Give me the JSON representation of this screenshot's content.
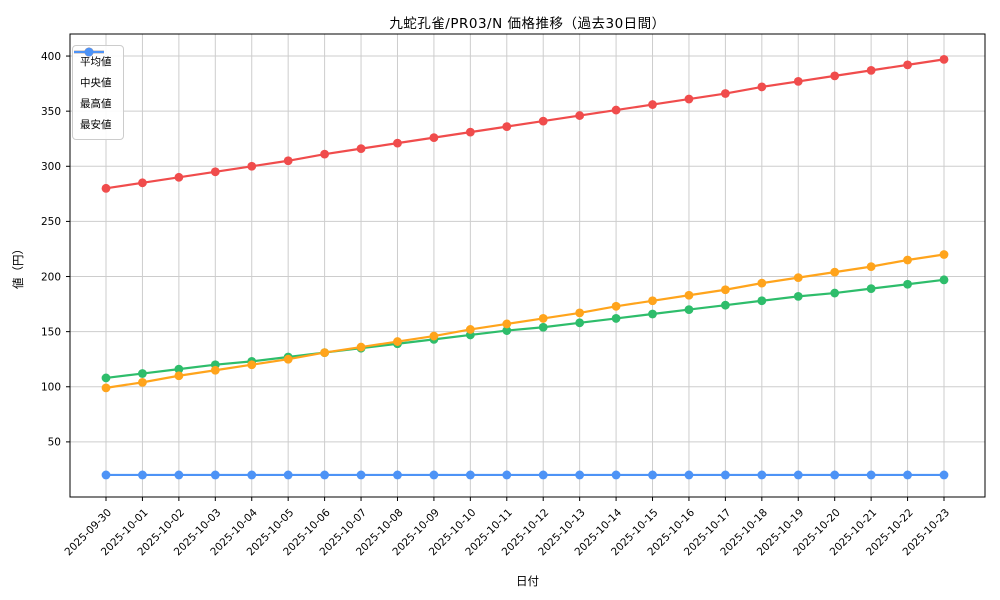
{
  "chart_data": {
    "type": "line",
    "title": "九蛇孔雀/PR03/N 価格推移（過去30日間）",
    "xlabel": "日付",
    "ylabel": "値（円）",
    "x": [
      "2025-09-30",
      "2025-10-01",
      "2025-10-02",
      "2025-10-03",
      "2025-10-04",
      "2025-10-05",
      "2025-10-06",
      "2025-10-07",
      "2025-10-08",
      "2025-10-09",
      "2025-10-10",
      "2025-10-11",
      "2025-10-12",
      "2025-10-13",
      "2025-10-14",
      "2025-10-15",
      "2025-10-16",
      "2025-10-17",
      "2025-10-18",
      "2025-10-19",
      "2025-10-20",
      "2025-10-21",
      "2025-10-22",
      "2025-10-23"
    ],
    "series": [
      {
        "id": "average",
        "name": "平均値",
        "color": "#2ebd6b",
        "values": [
          108,
          112,
          116,
          120,
          123,
          127,
          131,
          135,
          139,
          143,
          147,
          151,
          154,
          158,
          162,
          166,
          170,
          174,
          178,
          182,
          185,
          189,
          193,
          197
        ]
      },
      {
        "id": "median",
        "name": "中央値",
        "color": "#ffa41c",
        "values": [
          99,
          104,
          110,
          115,
          120,
          125,
          131,
          136,
          141,
          146,
          152,
          157,
          162,
          167,
          173,
          178,
          183,
          188,
          194,
          199,
          204,
          209,
          215,
          220
        ]
      },
      {
        "id": "max",
        "name": "最高値",
        "color": "#f04c4c",
        "values": [
          280,
          285,
          290,
          295,
          300,
          305,
          311,
          316,
          321,
          326,
          331,
          336,
          341,
          346,
          351,
          356,
          361,
          366,
          372,
          377,
          382,
          387,
          392,
          397
        ]
      },
      {
        "id": "min",
        "name": "最安値",
        "color": "#4d93f6",
        "values": [
          20,
          20,
          20,
          20,
          20,
          20,
          20,
          20,
          20,
          20,
          20,
          20,
          20,
          20,
          20,
          20,
          20,
          20,
          20,
          20,
          20,
          20,
          20,
          20
        ]
      }
    ],
    "yticks": [
      50,
      100,
      150,
      200,
      250,
      300,
      350,
      400
    ],
    "ylim": [
      0,
      420
    ],
    "grid": true,
    "grid_color": "#cdcdcd",
    "legend_position": "upper-left"
  }
}
